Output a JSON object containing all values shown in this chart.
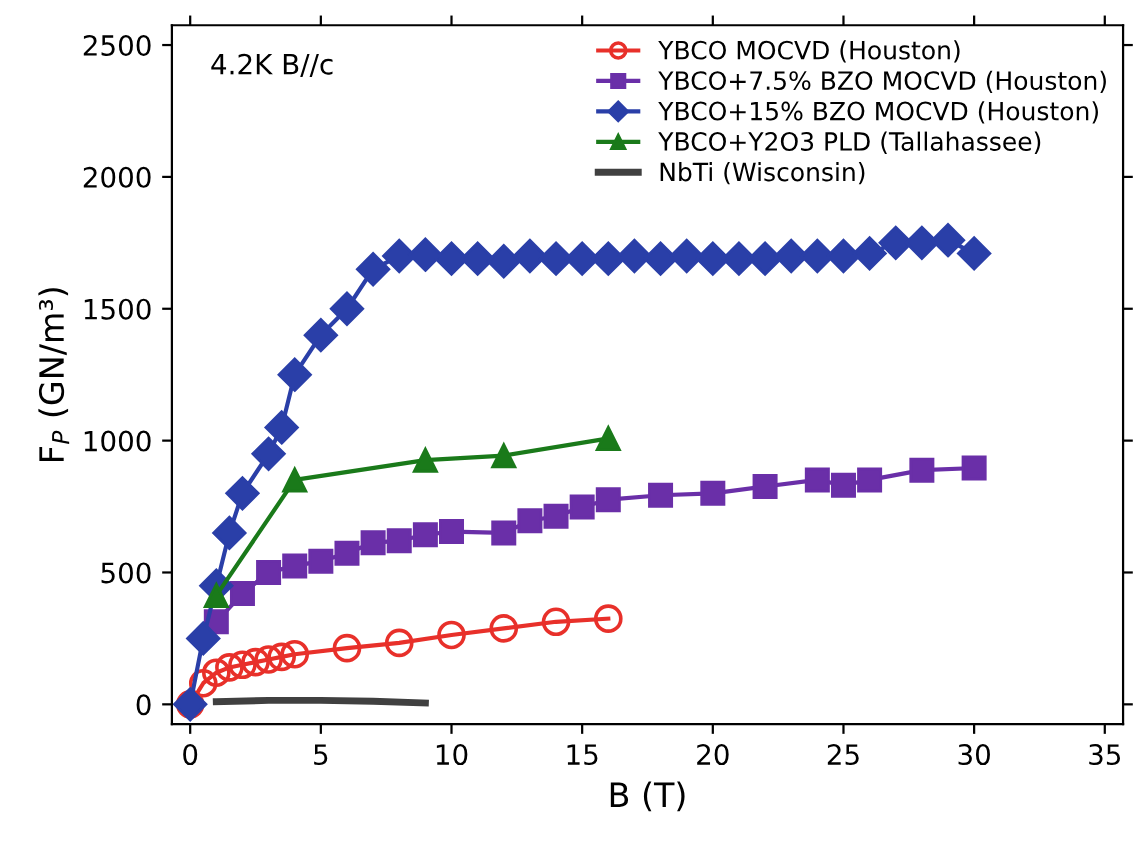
{
  "chart_data": {
    "type": "line",
    "xlabel": "B (T)",
    "ylabel": "F$_{P}$ (GN/m³)",
    "annotations": [
      "4.2K B//c"
    ],
    "xlim": [
      -0.7,
      35.7
    ],
    "ylim": [
      -75,
      2575
    ],
    "xticks": [
      0,
      5,
      10,
      15,
      20,
      25,
      30,
      35
    ],
    "yticks": [
      0,
      500,
      1000,
      1500,
      2000,
      2500
    ],
    "grid": false,
    "legend": "top right",
    "line_style": "solid",
    "series": [
      {
        "name": "YBCO MOCVD (Houston)",
        "color": "#e8302a",
        "marker": "circle",
        "x": [
          0,
          0.5,
          1,
          1.5,
          2,
          2.5,
          3,
          3.5,
          4,
          6,
          8,
          10,
          12,
          14,
          16
        ],
        "values": [
          0,
          80,
          120,
          140,
          150,
          160,
          170,
          180,
          190,
          213,
          233,
          263,
          288,
          313,
          325
        ]
      },
      {
        "name": "YBCO+7.5% BZO MOCVD (Houston)",
        "color": "#6a2fa8",
        "marker": "square",
        "x": [
          1,
          2,
          3,
          4,
          5,
          6,
          7,
          8,
          9,
          10,
          12,
          13,
          14,
          15,
          16,
          18,
          20,
          22,
          24,
          25,
          26,
          28,
          30
        ],
        "values": [
          313,
          420,
          500,
          525,
          543,
          573,
          613,
          620,
          643,
          655,
          650,
          696,
          713,
          748,
          776,
          793,
          800,
          826,
          851,
          831,
          851,
          888,
          896
        ]
      },
      {
        "name": "YBCO+15% BZO MOCVD (Houston)",
        "color": "#2a3fa8",
        "marker": "diamond",
        "x": [
          0,
          0.5,
          1,
          1.5,
          2,
          3,
          3.5,
          4,
          5,
          6,
          7,
          8,
          9,
          10,
          11,
          12,
          13,
          14,
          15,
          16,
          17,
          18,
          19,
          20,
          21,
          22,
          23,
          24,
          25,
          26,
          27,
          28,
          29,
          30
        ],
        "values": [
          0,
          250,
          450,
          650,
          800,
          950,
          1050,
          1250,
          1400,
          1500,
          1650,
          1700,
          1705,
          1690,
          1690,
          1680,
          1700,
          1690,
          1690,
          1690,
          1700,
          1690,
          1700,
          1690,
          1690,
          1690,
          1700,
          1700,
          1700,
          1710,
          1750,
          1750,
          1760,
          1710
        ]
      },
      {
        "name": "YBCO+Y2O3 PLD (Tallahassee)",
        "color": "#1a7a1a",
        "marker": "triangle",
        "x": [
          1,
          4,
          9,
          12,
          16
        ],
        "values": [
          413,
          851,
          926,
          943,
          1008
        ]
      },
      {
        "name": "NbTi (Wisconsin)",
        "color": "#404040",
        "marker": "none",
        "x": [
          1,
          3,
          5,
          7,
          9
        ],
        "values": [
          10,
          15,
          15,
          12,
          5
        ]
      }
    ]
  }
}
